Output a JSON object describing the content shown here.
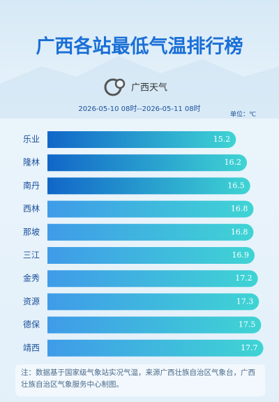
{
  "chart_data": {
    "type": "hbar",
    "title": "广西各站最低气温排行榜",
    "logo_text": "广西天气",
    "subtitle": "2026-05-10 08时--2026-05-11 08时",
    "unit_label": "单位：℃",
    "categories": [
      "乐业",
      "隆林",
      "南丹",
      "西林",
      "那坡",
      "三江",
      "金秀",
      "资源",
      "德保",
      "靖西"
    ],
    "values": [
      15.2,
      16.2,
      16.5,
      16.8,
      16.8,
      16.9,
      17.2,
      17.3,
      17.5,
      17.7
    ],
    "colors": [
      "#1166c8",
      "#1166c8",
      "#1166c8",
      "#3f9be8",
      "#3f9be8",
      "#3f9be8",
      "#3f9be8",
      "#3f9be8",
      "#3f9be8",
      "#3f9be8"
    ],
    "xlim": [
      -2,
      19
    ],
    "note": "注：数据基于国家级气象站实况气温，来源广西壮族自治区气象台，广西壮族自治区气象服务中心制图。"
  }
}
